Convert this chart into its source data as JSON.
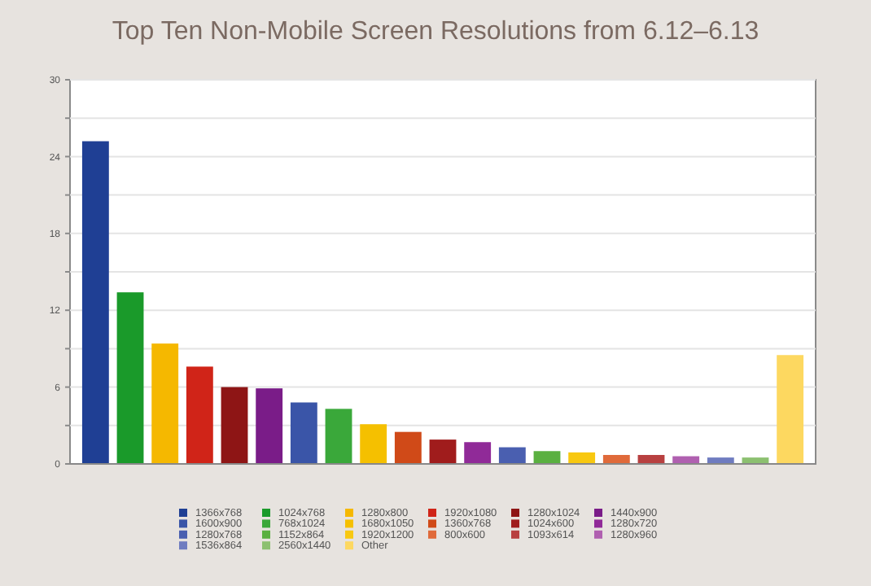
{
  "chart_data": {
    "type": "bar",
    "title": "Top Ten Non-Mobile Screen Resolutions from 6.12–6.13",
    "categories": [
      null,
      null,
      null,
      null,
      null,
      null,
      null,
      null,
      null,
      null,
      null,
      null,
      null,
      null,
      null,
      null,
      null,
      null,
      null,
      null,
      null
    ],
    "series": [
      {
        "name": "1366x768",
        "color": "#1f3f94",
        "values": [
          25.2,
          null,
          null,
          null,
          null,
          null,
          null,
          null,
          null,
          null,
          null,
          null,
          null,
          null,
          null,
          null,
          null,
          null,
          null,
          null,
          null
        ]
      },
      {
        "name": "1024x768",
        "color": "#1a9a2a",
        "values": [
          null,
          13.4,
          null,
          null,
          null,
          null,
          null,
          null,
          null,
          null,
          null,
          null,
          null,
          null,
          null,
          null,
          null,
          null,
          null,
          null,
          null
        ]
      },
      {
        "name": "1280x800",
        "color": "#f5b800",
        "values": [
          null,
          null,
          9.4,
          null,
          null,
          null,
          null,
          null,
          null,
          null,
          null,
          null,
          null,
          null,
          null,
          null,
          null,
          null,
          null,
          null,
          null
        ]
      },
      {
        "name": "1920x1080",
        "color": "#d02418",
        "values": [
          null,
          null,
          null,
          7.6,
          null,
          null,
          null,
          null,
          null,
          null,
          null,
          null,
          null,
          null,
          null,
          null,
          null,
          null,
          null,
          null,
          null
        ]
      },
      {
        "name": "1280x1024",
        "color": "#8e1515",
        "values": [
          null,
          null,
          null,
          null,
          6.0,
          null,
          null,
          null,
          null,
          null,
          null,
          null,
          null,
          null,
          null,
          null,
          null,
          null,
          null,
          null,
          null
        ]
      },
      {
        "name": "1440x900",
        "color": "#7a1c88",
        "values": [
          null,
          null,
          null,
          null,
          null,
          5.9,
          null,
          null,
          null,
          null,
          null,
          null,
          null,
          null,
          null,
          null,
          null,
          null,
          null,
          null,
          null
        ]
      },
      {
        "name": "1600x900",
        "color": "#3a55a8",
        "values": [
          null,
          null,
          null,
          null,
          null,
          null,
          4.8,
          null,
          null,
          null,
          null,
          null,
          null,
          null,
          null,
          null,
          null,
          null,
          null,
          null,
          null
        ]
      },
      {
        "name": "768x1024",
        "color": "#3aa83a",
        "values": [
          null,
          null,
          null,
          null,
          null,
          null,
          null,
          4.3,
          null,
          null,
          null,
          null,
          null,
          null,
          null,
          null,
          null,
          null,
          null,
          null,
          null
        ]
      },
      {
        "name": "1680x1050",
        "color": "#f5c000",
        "values": [
          null,
          null,
          null,
          null,
          null,
          null,
          null,
          null,
          3.1,
          null,
          null,
          null,
          null,
          null,
          null,
          null,
          null,
          null,
          null,
          null,
          null
        ]
      },
      {
        "name": "1360x768",
        "color": "#d04a18",
        "values": [
          null,
          null,
          null,
          null,
          null,
          null,
          null,
          null,
          null,
          2.5,
          null,
          null,
          null,
          null,
          null,
          null,
          null,
          null,
          null,
          null,
          null
        ]
      },
      {
        "name": "1024x600",
        "color": "#a01c1c",
        "values": [
          null,
          null,
          null,
          null,
          null,
          null,
          null,
          null,
          null,
          null,
          1.9,
          null,
          null,
          null,
          null,
          null,
          null,
          null,
          null,
          null,
          null
        ]
      },
      {
        "name": "1280x720",
        "color": "#902a98",
        "values": [
          null,
          null,
          null,
          null,
          null,
          null,
          null,
          null,
          null,
          null,
          null,
          1.7,
          null,
          null,
          null,
          null,
          null,
          null,
          null,
          null,
          null
        ]
      },
      {
        "name": "1280x768",
        "color": "#4a5fb0",
        "values": [
          null,
          null,
          null,
          null,
          null,
          null,
          null,
          null,
          null,
          null,
          null,
          null,
          1.3,
          null,
          null,
          null,
          null,
          null,
          null,
          null,
          null
        ]
      },
      {
        "name": "1152x864",
        "color": "#5ab040",
        "values": [
          null,
          null,
          null,
          null,
          null,
          null,
          null,
          null,
          null,
          null,
          null,
          null,
          null,
          1.0,
          null,
          null,
          null,
          null,
          null,
          null,
          null
        ]
      },
      {
        "name": "1920x1200",
        "color": "#f8c810",
        "values": [
          null,
          null,
          null,
          null,
          null,
          null,
          null,
          null,
          null,
          null,
          null,
          null,
          null,
          null,
          0.9,
          null,
          null,
          null,
          null,
          null,
          null
        ]
      },
      {
        "name": "800x600",
        "color": "#e06a3a",
        "values": [
          null,
          null,
          null,
          null,
          null,
          null,
          null,
          null,
          null,
          null,
          null,
          null,
          null,
          null,
          null,
          0.7,
          null,
          null,
          null,
          null,
          null
        ]
      },
      {
        "name": "1093x614",
        "color": "#b84040",
        "values": [
          null,
          null,
          null,
          null,
          null,
          null,
          null,
          null,
          null,
          null,
          null,
          null,
          null,
          null,
          null,
          null,
          0.7,
          null,
          null,
          null,
          null
        ]
      },
      {
        "name": "1280x960",
        "color": "#b060b0",
        "values": [
          null,
          null,
          null,
          null,
          null,
          null,
          null,
          null,
          null,
          null,
          null,
          null,
          null,
          null,
          null,
          null,
          null,
          0.6,
          null,
          null,
          null
        ]
      },
      {
        "name": "1536x864",
        "color": "#6f7cc0",
        "values": [
          null,
          null,
          null,
          null,
          null,
          null,
          null,
          null,
          null,
          null,
          null,
          null,
          null,
          null,
          null,
          null,
          null,
          null,
          0.5,
          null,
          null
        ]
      },
      {
        "name": "2560x1440",
        "color": "#8cc070",
        "values": [
          null,
          null,
          null,
          null,
          null,
          null,
          null,
          null,
          null,
          null,
          null,
          null,
          null,
          null,
          null,
          null,
          null,
          null,
          null,
          0.5,
          null
        ]
      },
      {
        "name": "Other",
        "color": "#fdd860",
        "values": [
          null,
          null,
          null,
          null,
          null,
          null,
          null,
          null,
          null,
          null,
          null,
          null,
          null,
          null,
          null,
          null,
          null,
          null,
          null,
          null,
          8.5
        ]
      }
    ],
    "ylim": [
      0,
      30
    ],
    "yticks": [
      0,
      {
        "value": 3,
        "label": null
      },
      6,
      {
        "value": 9,
        "label": null
      },
      12,
      {
        "value": 15,
        "label": null
      },
      18,
      {
        "value": 21,
        "label": null
      },
      24,
      {
        "value": 27,
        "label": null
      },
      30
    ],
    "grid": "y",
    "tick_labels": "y",
    "legend": "bottom"
  }
}
